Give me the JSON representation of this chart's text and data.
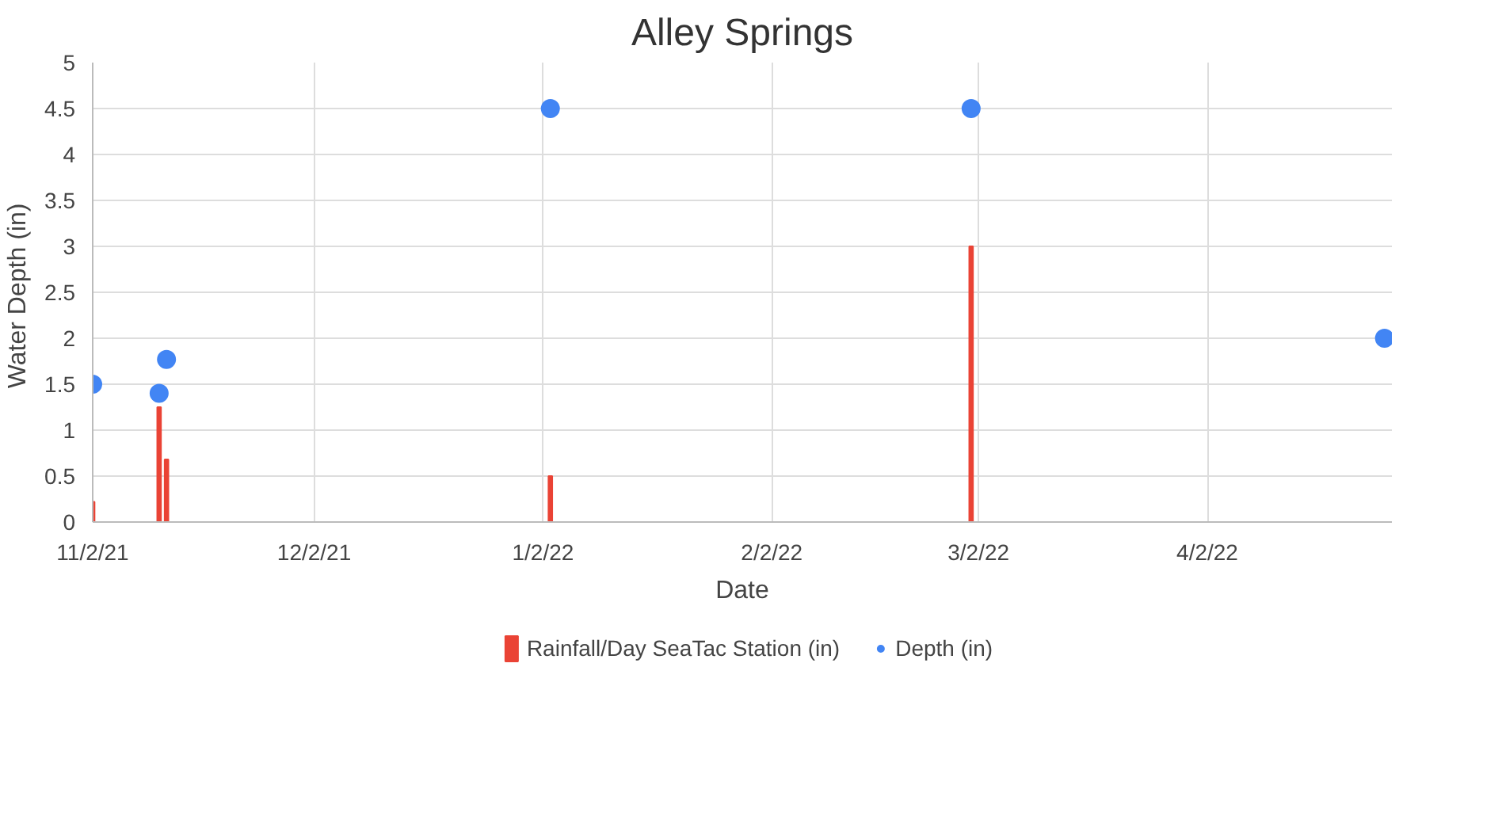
{
  "chart_data": {
    "type": "bar",
    "title": "Alley Springs",
    "xlabel": "Date",
    "ylabel": "Water Depth  (in)",
    "xlim": [
      "2021-11-02",
      "2022-04-27"
    ],
    "xticks": [
      {
        "value": "2021-11-02",
        "label": "11/2/21"
      },
      {
        "value": "2021-12-02",
        "label": "12/2/21"
      },
      {
        "value": "2022-01-02",
        "label": "1/2/22"
      },
      {
        "value": "2022-02-02",
        "label": "2/2/22"
      },
      {
        "value": "2022-03-02",
        "label": "3/2/22"
      },
      {
        "value": "2022-04-02",
        "label": "4/2/22"
      }
    ],
    "ylim": [
      0,
      5
    ],
    "yticks": [
      0,
      0.5,
      1,
      1.5,
      2,
      2.5,
      3,
      3.5,
      4,
      4.5,
      5
    ],
    "grid": true,
    "legend": "bottom",
    "series": [
      {
        "name": "Rainfall/Day SeaTac Station (in)",
        "color": "#ea4335",
        "x": [
          "2021-11-02",
          "2021-11-11",
          "2021-11-12",
          "2022-01-03",
          "2022-03-01"
        ],
        "values": [
          0.22,
          1.25,
          0.68,
          0.5,
          3.0
        ]
      },
      {
        "name": "Depth (in)",
        "type": "scatter",
        "marker": "circle",
        "color": "#4285f4",
        "x": [
          "2021-11-02",
          "2021-11-11",
          "2021-11-12",
          "2022-01-03",
          "2022-03-01",
          "2022-04-26"
        ],
        "values": [
          1.5,
          1.4,
          1.77,
          4.5,
          4.5,
          2.0
        ]
      }
    ]
  }
}
